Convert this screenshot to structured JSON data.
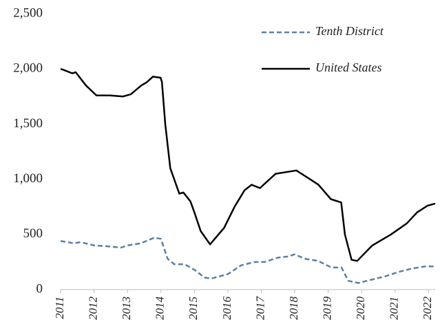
{
  "chart_data": {
    "type": "line",
    "xlim": [
      2011,
      2022.2
    ],
    "xticks": [
      2011,
      2012,
      2013,
      2014,
      2015,
      2016,
      2017,
      2018,
      2019,
      2020,
      2021,
      2022
    ],
    "ylim": [
      0,
      2500
    ],
    "yticks": [
      0,
      500,
      {
        "value": 1000,
        "label": "1,000"
      },
      {
        "value": 1500,
        "label": "1,500"
      },
      {
        "value": 2000,
        "label": "2,000"
      },
      {
        "value": 2500,
        "label": "2,500"
      }
    ],
    "grid": false,
    "series": [
      {
        "name": "Tenth District",
        "color": "#5b7fa3",
        "dashed": true,
        "x": [
          2011,
          2011.4,
          2011.6,
          2012.0,
          2012.5,
          2012.8,
          2013.0,
          2013.4,
          2013.8,
          2014.0,
          2014.2,
          2014.4,
          2014.7,
          2015.0,
          2015.3,
          2015.5,
          2016.0,
          2016.4,
          2016.8,
          2017.1,
          2017.5,
          2017.8,
          2018.0,
          2018.3,
          2018.7,
          2019.1,
          2019.4,
          2019.6,
          2019.9,
          2020.3,
          2020.7,
          2021.1,
          2021.5,
          2021.9,
          2022.2
        ],
        "values": [
          440,
          420,
          430,
          400,
          390,
          380,
          400,
          420,
          470,
          460,
          280,
          230,
          230,
          180,
          110,
          100,
          140,
          220,
          250,
          250,
          290,
          300,
          320,
          280,
          260,
          200,
          200,
          80,
          60,
          90,
          120,
          160,
          190,
          210,
          210
        ]
      },
      {
        "name": "United States",
        "color": "#000000",
        "dashed": false,
        "x": [
          2011,
          2011.1,
          2011.35,
          2011.45,
          2011.76,
          2012.07,
          2012.48,
          2012.86,
          2013.1,
          2013.41,
          2013.58,
          2013.76,
          2013.99,
          2014.03,
          2014.13,
          2014.28,
          2014.55,
          2014.67,
          2014.88,
          2015.0,
          2015.19,
          2015.47,
          2015.89,
          2016.2,
          2016.5,
          2016.71,
          2016.96,
          2017.43,
          2018.05,
          2018.46,
          2018.71,
          2019.08,
          2019.39,
          2019.5,
          2019.7,
          2019.87,
          2020.32,
          2020.88,
          2021.35,
          2021.66,
          2021.97,
          2022.2
        ],
        "values": [
          2000,
          1990,
          1960,
          1970,
          1850,
          1760,
          1760,
          1750,
          1770,
          1850,
          1880,
          1930,
          1920,
          1880,
          1500,
          1100,
          870,
          880,
          800,
          700,
          530,
          410,
          560,
          750,
          900,
          950,
          920,
          1050,
          1080,
          1000,
          950,
          820,
          790,
          500,
          270,
          260,
          400,
          500,
          600,
          700,
          760,
          780
        ]
      }
    ],
    "legend": "top-right"
  }
}
